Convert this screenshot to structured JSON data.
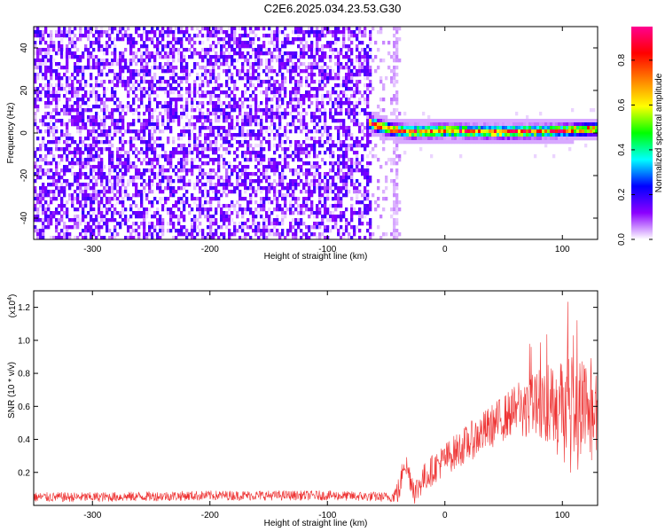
{
  "chart_data": [
    {
      "type": "heatmap",
      "title": "C2E6.2025.034.23.53.G30",
      "xlabel": "Height of straight line (km)",
      "ylabel": "Frequency (Hz)",
      "xlim": [
        -350,
        130
      ],
      "ylim": [
        -50,
        50
      ],
      "x_ticks": [
        -300,
        -200,
        -100,
        0,
        100
      ],
      "x_tick_labels": [
        "-300",
        "-200",
        "-100",
        "0",
        "100"
      ],
      "y_ticks": [
        -40,
        -20,
        0,
        20,
        40
      ],
      "y_tick_labels": [
        "-40",
        "-20",
        "0",
        "20",
        "40"
      ],
      "colorbar": {
        "label": "Normalized spectral amplitude",
        "range": [
          0.0,
          0.95
        ],
        "ticks": [
          0.0,
          0.2,
          0.4,
          0.6,
          0.8
        ],
        "tick_labels": [
          "0.0",
          "0.2",
          "0.4",
          "0.6",
          "0.8"
        ],
        "colormap": [
          "#ffffff",
          "#8b00ff",
          "#0000ff",
          "#00ffff",
          "#00ff00",
          "#ffff00",
          "#ff8000",
          "#ff0000",
          "#ff0090"
        ]
      },
      "noise_region": {
        "x_start": -350,
        "x_end": -62,
        "amplitude_range": [
          0.0,
          0.2
        ]
      },
      "sparse_region": {
        "x_start": -62,
        "x_end": -38
      },
      "signal_band": {
        "x_start": -65,
        "x_end": 130,
        "center_frequency": [
          [
            -65,
            5
          ],
          [
            -55,
            3
          ],
          [
            -45,
            1.5
          ],
          [
            -30,
            0.5
          ],
          [
            0,
            1
          ],
          [
            50,
            0.5
          ],
          [
            100,
            1
          ],
          [
            130,
            2
          ]
        ],
        "half_width_hz": 2.5,
        "peak_amplitude": 0.95
      }
    },
    {
      "type": "line",
      "xlabel": "Height of straight line (km)",
      "ylabel": "SNR (10 * v/v)",
      "y_multiplier": "(x10",
      "y_multiplier_exp": "4",
      "y_multiplier_close": ")",
      "xlim": [
        -350,
        130
      ],
      "ylim": [
        0,
        1.3
      ],
      "x_ticks": [
        -300,
        -200,
        -100,
        0,
        100
      ],
      "x_tick_labels": [
        "-300",
        "-200",
        "-100",
        "0",
        "100"
      ],
      "y_ticks": [
        0.2,
        0.4,
        0.6,
        0.8,
        1.0,
        1.2
      ],
      "y_tick_labels": [
        "0.2",
        "0.4",
        "0.6",
        "0.8",
        "1.0",
        "1.2"
      ],
      "color": "#ee3333",
      "trend": {
        "x": [
          -350,
          -300,
          -200,
          -100,
          -45,
          -38,
          -35,
          -30,
          -25,
          -20,
          -10,
          0,
          20,
          40,
          60,
          80,
          100,
          120,
          130
        ],
        "y": [
          0.05,
          0.05,
          0.06,
          0.06,
          0.05,
          0.1,
          0.28,
          0.18,
          0.08,
          0.15,
          0.22,
          0.28,
          0.38,
          0.48,
          0.58,
          0.62,
          0.65,
          0.6,
          0.55
        ]
      },
      "noise_amplitude": [
        [
          -350,
          0.03
        ],
        [
          -45,
          0.03
        ],
        [
          -40,
          0.08
        ],
        [
          0,
          0.1
        ],
        [
          60,
          0.15
        ],
        [
          100,
          0.3
        ],
        [
          130,
          0.35
        ]
      ]
    }
  ]
}
